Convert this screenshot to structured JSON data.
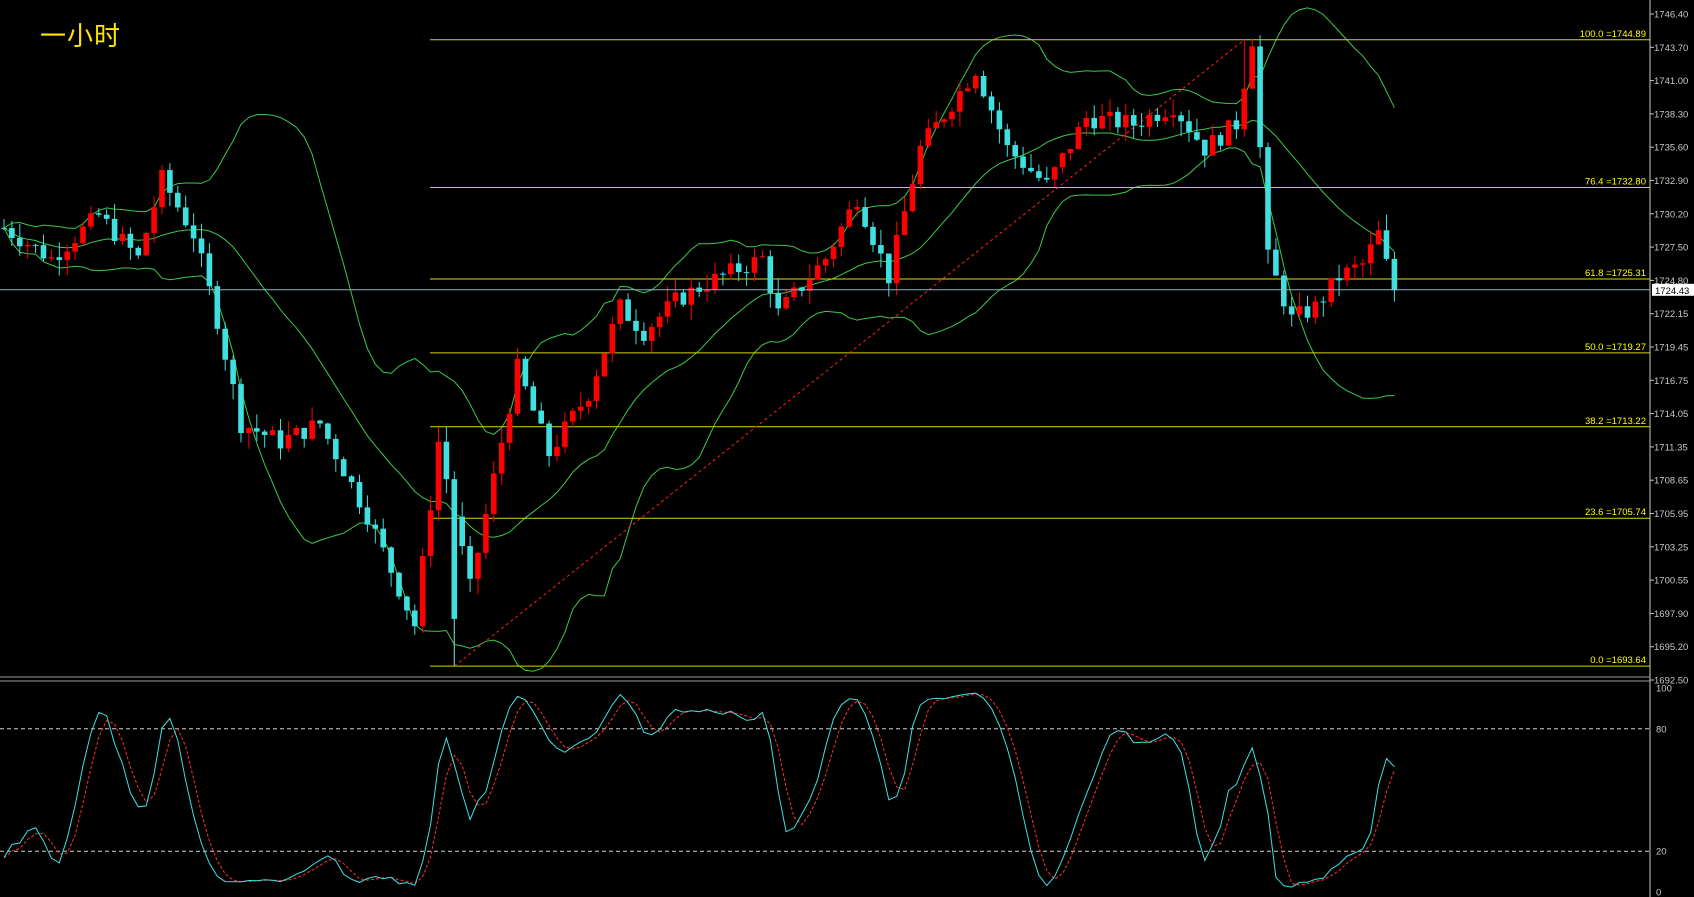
{
  "chart_title": "一小时",
  "colors": {
    "background": "#000000",
    "bull_candle": "#ff0000",
    "bear_candle": "#40e0e0",
    "bollinger": "#3cc84a",
    "fib_line": "#d7d700",
    "fib_text": "#ffff00",
    "trend_line": "#ff2020",
    "stoch_k": "#40e0e0",
    "stoch_d": "#ff3030",
    "axis": "#c8c8c8",
    "current_price_line": "#8ab4c8"
  },
  "price_axis_labels": [
    "1746.40",
    "1743.70",
    "1741.00",
    "1738.30",
    "1735.60",
    "1732.90",
    "1730.20",
    "1727.50",
    "1724.80",
    "1722.15",
    "1719.45",
    "1716.75",
    "1714.05",
    "1711.35",
    "1708.65",
    "1705.95",
    "1703.25",
    "1700.55",
    "1697.90",
    "1695.20",
    "1692.50"
  ],
  "current_price_label": "1724.43",
  "stoch_axis_labels": [
    "100",
    "80",
    "20",
    "0"
  ],
  "chart_data": {
    "type": "candlestick",
    "timeframe": "一小时",
    "ylim": [
      1692.5,
      1747.0
    ],
    "current_price": 1724.43,
    "fibonacci_levels": [
      {
        "label": "100.0",
        "price": 1744.89,
        "text": "100.0  =1744.89"
      },
      {
        "label": "76.4",
        "price": 1732.8,
        "text": "76.4  =1732.80"
      },
      {
        "label": "61.8",
        "price": 1725.31,
        "text": "61.8  =1725.31"
      },
      {
        "label": "50.0",
        "price": 1719.27,
        "text": "50.0  =1719.27"
      },
      {
        "label": "38.2",
        "price": 1713.22,
        "text": "38.2  =1713.22"
      },
      {
        "label": "23.6",
        "price": 1705.74,
        "text": "23.6  =1705.74"
      },
      {
        "label": "0.0",
        "price": 1693.64,
        "text": "0.0  =1693.64"
      }
    ],
    "fib_trend_line": {
      "from": {
        "bar": 57,
        "price": 1693.64
      },
      "to": {
        "bar": 157,
        "price": 1744.89
      }
    },
    "stochastic": {
      "ylim": [
        0,
        100
      ],
      "levels": [
        80,
        20
      ]
    }
  }
}
